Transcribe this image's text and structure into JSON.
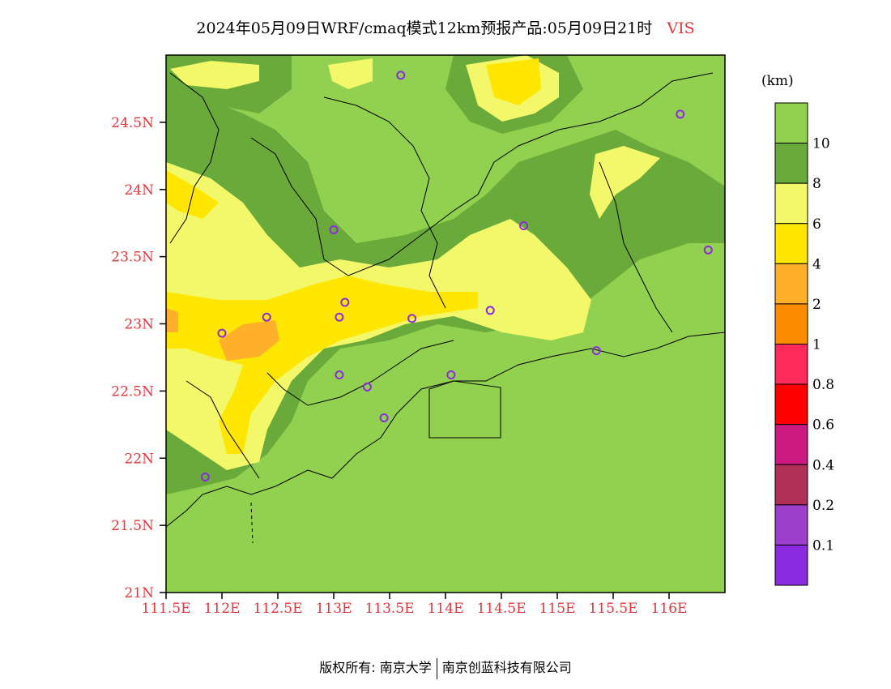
{
  "title": {
    "main": "2024年05月09日WRF/cmaq模式12km预报产品:05月09日21时",
    "variable": "VIS"
  },
  "legend": {
    "unit": "(km)",
    "labels": [
      "10",
      "8",
      "6",
      "4",
      "2",
      "1",
      "0.8",
      "0.6",
      "0.4",
      "0.2",
      "0.1"
    ],
    "colors": [
      "#92d050",
      "#6aaa3a",
      "#f3f76a",
      "#ffe600",
      "#ffb02a",
      "#ff8c00",
      "#ff2a5a",
      "#ff0000",
      "#cc1a80",
      "#b0305a",
      "#9b3fcc",
      "#8a2be2"
    ]
  },
  "axes": {
    "x_ticks": [
      "111.5E",
      "112E",
      "112.5E",
      "113E",
      "113.5E",
      "114E",
      "114.5E",
      "115E",
      "115.5E",
      "116E"
    ],
    "y_ticks": [
      "24.5N",
      "24N",
      "23.5N",
      "23N",
      "22.5N",
      "22N",
      "21.5N",
      "21N"
    ]
  },
  "stations": [
    {
      "lon": 113.6,
      "lat": 24.85
    },
    {
      "lon": 116.1,
      "lat": 24.56
    },
    {
      "lon": 113.0,
      "lat": 23.7
    },
    {
      "lon": 114.7,
      "lat": 23.73
    },
    {
      "lon": 116.35,
      "lat": 23.55
    },
    {
      "lon": 112.4,
      "lat": 23.05
    },
    {
      "lon": 112.0,
      "lat": 22.93
    },
    {
      "lon": 113.1,
      "lat": 23.16
    },
    {
      "lon": 113.05,
      "lat": 23.05
    },
    {
      "lon": 113.7,
      "lat": 23.04
    },
    {
      "lon": 114.4,
      "lat": 23.1
    },
    {
      "lon": 115.35,
      "lat": 22.8
    },
    {
      "lon": 113.05,
      "lat": 22.62
    },
    {
      "lon": 113.3,
      "lat": 22.53
    },
    {
      "lon": 114.05,
      "lat": 22.62
    },
    {
      "lon": 113.45,
      "lat": 22.3
    },
    {
      "lon": 111.85,
      "lat": 21.86
    }
  ],
  "footer": {
    "left": "版权所有: 南京大学",
    "right": "南京创蓝科技有限公司"
  }
}
